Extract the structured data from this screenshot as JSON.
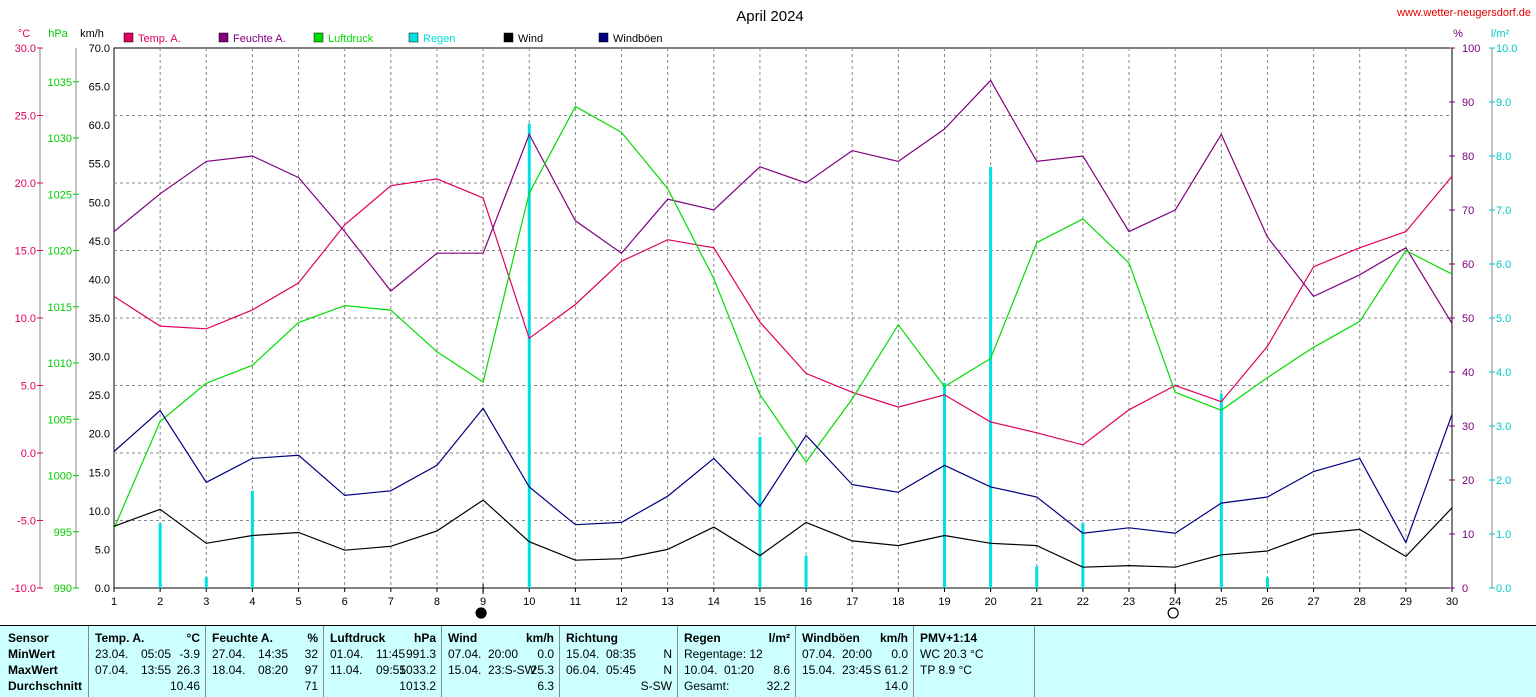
{
  "chart_data": {
    "type": "line",
    "title": "April 2024",
    "website": "www.wetter-neugersdorf.de",
    "x": [
      1,
      2,
      3,
      4,
      5,
      6,
      7,
      8,
      9,
      10,
      11,
      12,
      13,
      14,
      15,
      16,
      17,
      18,
      19,
      20,
      21,
      22,
      23,
      24,
      25,
      26,
      27,
      28,
      29,
      30
    ],
    "xlim": [
      1,
      30
    ],
    "axes": {
      "temp": {
        "unit": "°C",
        "range": [
          -10,
          30
        ],
        "ticks": [
          "-10.0",
          "-5.0",
          "0.0",
          "5.0",
          "10.0",
          "15.0",
          "20.0",
          "25.0",
          "30.0"
        ],
        "color": "#e0005e"
      },
      "pressure": {
        "unit": "hPa",
        "range": [
          990,
          1038
        ],
        "ticks": [
          "990",
          "995",
          "1000",
          "1005",
          "1010",
          "1015",
          "1020",
          "1025",
          "1030",
          "1035"
        ],
        "color": "#00cc00"
      },
      "wind": {
        "unit": "km/h",
        "range": [
          0,
          70
        ],
        "ticks": [
          "0.0",
          "5.0",
          "10.0",
          "15.0",
          "20.0",
          "25.0",
          "30.0",
          "35.0",
          "40.0",
          "45.0",
          "50.0",
          "55.0",
          "60.0",
          "65.0",
          "70.0"
        ],
        "color": "#000000"
      },
      "humidity": {
        "unit": "%",
        "range": [
          0,
          100
        ],
        "ticks": [
          "0",
          "10",
          "20",
          "30",
          "40",
          "50",
          "60",
          "70",
          "80",
          "90",
          "100"
        ],
        "color": "#800080"
      },
      "rain": {
        "unit": "l/m²",
        "range": [
          0,
          10
        ],
        "ticks": [
          "0.0",
          "1.0",
          "2.0",
          "3.0",
          "4.0",
          "5.0",
          "6.0",
          "7.0",
          "8.0",
          "9.0",
          "10.0"
        ],
        "color": "#00c8c8"
      }
    },
    "legend": [
      {
        "label": "Temp. A.",
        "color": "#e0005e"
      },
      {
        "label": "Feuchte A.",
        "color": "#800080"
      },
      {
        "label": "Luftdruck",
        "color": "#00dd00"
      },
      {
        "label": "Regen",
        "color": "#00e0e0"
      },
      {
        "label": "Wind",
        "color": "#000000"
      },
      {
        "label": "Windböen",
        "color": "#000080"
      }
    ],
    "series": [
      {
        "name": "Temp. A.",
        "axis": "temp",
        "color": "#e0005e",
        "values": [
          11.6,
          9.4,
          9.2,
          10.6,
          12.6,
          16.9,
          19.8,
          20.3,
          18.9,
          8.5,
          11.0,
          14.2,
          15.8,
          15.2,
          9.7,
          5.9,
          4.5,
          3.4,
          4.3,
          2.3,
          1.5,
          0.6,
          3.2,
          5.0,
          3.8,
          7.9,
          13.8,
          15.2,
          16.4,
          20.5
        ]
      },
      {
        "name": "Feuchte A.",
        "axis": "humidity",
        "color": "#800080",
        "values": [
          66,
          73,
          79,
          80,
          76,
          66,
          55,
          62,
          62,
          84,
          68,
          62,
          72,
          70,
          78,
          75,
          81,
          79,
          85,
          94,
          79,
          80,
          66,
          70,
          84,
          65,
          54,
          58,
          63,
          49
        ]
      },
      {
        "name": "Luftdruck",
        "axis": "pressure",
        "color": "#00dd00",
        "values": [
          995.3,
          1004.8,
          1008.2,
          1009.8,
          1013.6,
          1015.1,
          1014.7,
          1011.0,
          1008.3,
          1025.1,
          1032.8,
          1030.5,
          1025.5,
          1017.5,
          1007.2,
          1001.2,
          1006.8,
          1013.4,
          1007.9,
          1010.4,
          1020.7,
          1022.8,
          1018.9,
          1007.4,
          1005.8,
          1008.7,
          1011.4,
          1013.7,
          1020.0,
          1017.9
        ]
      },
      {
        "name": "Wind",
        "axis": "wind",
        "color": "#000000",
        "values": [
          8.0,
          10.2,
          5.8,
          6.8,
          7.2,
          4.9,
          5.4,
          7.4,
          11.4,
          6.0,
          3.6,
          3.8,
          5.0,
          7.9,
          4.2,
          8.5,
          6.1,
          5.5,
          6.8,
          5.8,
          5.5,
          2.7,
          2.9,
          2.7,
          4.3,
          4.8,
          7.0,
          7.6,
          4.1,
          10.4
        ]
      },
      {
        "name": "Windböen",
        "axis": "wind",
        "color": "#000080",
        "values": [
          17.7,
          23.0,
          13.7,
          16.8,
          17.2,
          12.0,
          12.6,
          15.9,
          23.3,
          13.1,
          8.2,
          8.5,
          11.9,
          16.8,
          10.6,
          19.8,
          13.4,
          12.4,
          15.9,
          13.1,
          11.8,
          7.1,
          7.8,
          7.1,
          11.0,
          11.8,
          15.1,
          16.8,
          5.9,
          22.5
        ]
      },
      {
        "name": "Regen",
        "axis": "rain",
        "type": "bar",
        "color": "#00e0e0",
        "values": [
          0,
          1.2,
          0.2,
          1.8,
          0,
          0,
          0,
          0,
          0,
          8.6,
          0,
          0,
          0,
          0,
          2.8,
          0.6,
          0,
          0,
          3.8,
          7.8,
          0.4,
          1.2,
          0,
          0,
          3.6,
          0.2,
          0,
          0,
          0,
          0
        ]
      }
    ],
    "moon_phases": [
      {
        "day": 9,
        "phase": "new"
      },
      {
        "day": 24,
        "phase": "full"
      }
    ],
    "grid": true
  },
  "stats_table": {
    "sensor": {
      "header": "Sensor",
      "min": "MinWert",
      "max": "MaxWert",
      "avg": "Durchschnitt"
    },
    "temp": {
      "header": "Temp. A.",
      "unit": "°C",
      "min_date": "23.04.",
      "min_time": "05:05",
      "min_val": "-3.9",
      "max_date": "07.04.",
      "max_time": "13:55",
      "max_val": "26.3",
      "avg": "10.46"
    },
    "humidity": {
      "header": "Feuchte A.",
      "unit": "%",
      "min_date": "27.04.",
      "min_time": "14:35",
      "min_val": "32",
      "max_date": "18.04.",
      "max_time": "08:20",
      "max_val": "97",
      "avg": "71"
    },
    "pressure": {
      "header": "Luftdruck",
      "unit": "hPa",
      "min_date": "01.04.",
      "min_time": "11:45",
      "min_val": "991.3",
      "max_date": "11.04.",
      "max_time": "09:55",
      "max_val": "1033.2",
      "avg": "1013.2"
    },
    "wind": {
      "header": "Wind",
      "unit": "km/h",
      "min_date": "07.04.",
      "min_time": "20:00",
      "min_val": "0.0",
      "max_date": "15.04.",
      "max_time": "23:S-SW",
      "max_val": "25.3",
      "avg": "6.3"
    },
    "direction": {
      "header": "Richtung",
      "min_date": "15.04.",
      "min_time": "08:35",
      "min_val": "N",
      "max_date": "06.04.",
      "max_time": "05:45",
      "max_val": "N",
      "avg": "S-SW"
    },
    "rain": {
      "header": "Regen",
      "unit": "l/m²",
      "row1": "Regentage: 12",
      "row2_date": "10.04.",
      "row2_time": "01:20",
      "row2_val": "8.6",
      "row3_label": "Gesamt:",
      "row3_val": "32.2"
    },
    "gusts": {
      "header": "Windböen",
      "unit": "km/h",
      "min_date": "07.04.",
      "min_time": "20:00",
      "min_val": "0.0",
      "max_date": "15.04.",
      "max_time": "23:45",
      "max_val": "S 61.2",
      "avg": "14.0"
    },
    "pmv": {
      "header": "PMV+1:14",
      "row1": "WC 20.3 °C",
      "row2": "TP 8.9 °C"
    }
  }
}
